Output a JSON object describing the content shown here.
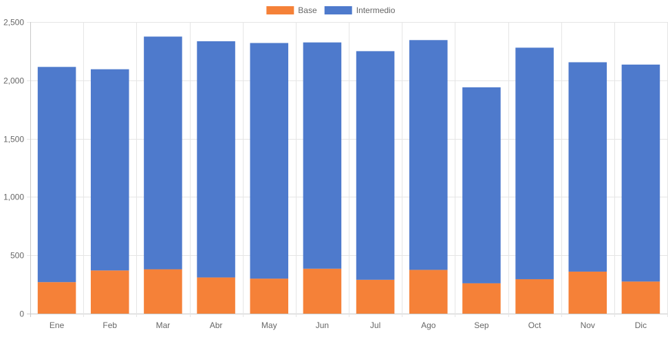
{
  "chart_data": {
    "type": "bar",
    "stacked": true,
    "categories": [
      "Ene",
      "Feb",
      "Mar",
      "Abr",
      "May",
      "Jun",
      "Jul",
      "Ago",
      "Sep",
      "Oct",
      "Nov",
      "Dic"
    ],
    "series": [
      {
        "name": "Base",
        "color": "#f58138",
        "values": [
          270,
          370,
          380,
          310,
          300,
          385,
          290,
          375,
          260,
          295,
          360,
          275
        ]
      },
      {
        "name": "Intermedio",
        "color": "#4e7acc",
        "values": [
          1845,
          1725,
          1995,
          2025,
          2020,
          1940,
          1960,
          1970,
          1680,
          1985,
          1795,
          1860
        ]
      }
    ],
    "ylim": [
      0,
      2500
    ],
    "yticks": [
      0,
      500,
      1000,
      1500,
      2000,
      2500
    ],
    "ytick_labels": [
      "0",
      "500",
      "1,000",
      "1,500",
      "2,000",
      "2,500"
    ],
    "legend_position": "top",
    "grid": true
  }
}
